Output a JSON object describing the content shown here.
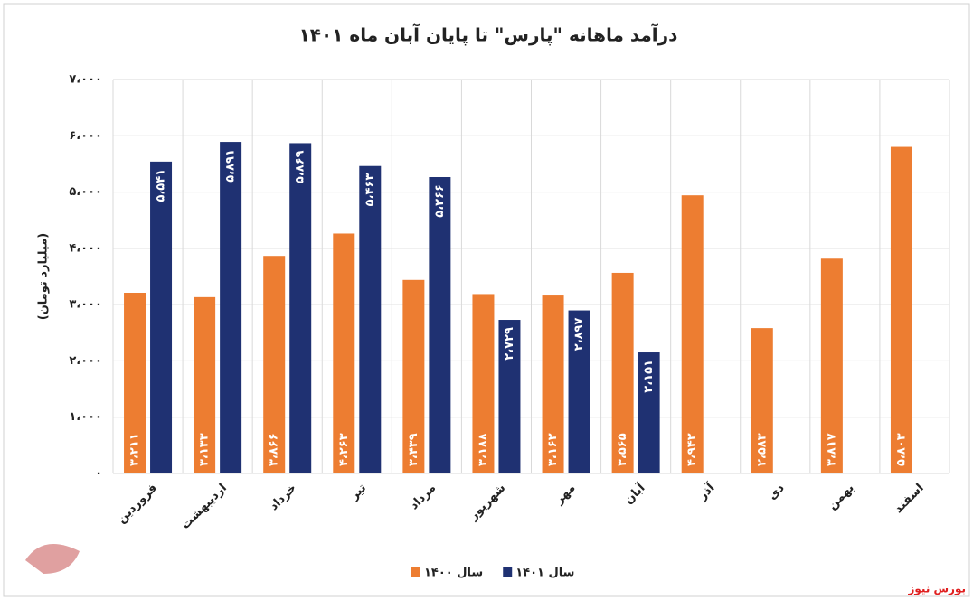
{
  "chart_data": {
    "type": "bar",
    "title": "درآمد ماهانه \"پارس\" تا پایان آبان ماه ۱۴۰۱",
    "y_label": "(میلیارد تومان)",
    "categories": [
      "فروردین",
      "اردیبهشت",
      "خرداد",
      "تیر",
      "مرداد",
      "شهریور",
      "مهر",
      "آبان",
      "آذر",
      "دی",
      "بهمن",
      "اسفند"
    ],
    "series": [
      {
        "name": "سال ۱۴۰۰",
        "color": "#ed7d31",
        "values": [
          3211,
          3133,
          3866,
          4263,
          3439,
          3188,
          3162,
          3565,
          4942,
          2583,
          3817,
          5803
        ],
        "value_labels": [
          "۳،۲۱۱",
          "۳،۱۳۳",
          "۳،۸۶۶",
          "۴،۲۶۳",
          "۳،۴۳۹",
          "۳،۱۸۸",
          "۳،۱۶۲",
          "۳،۵۶۵",
          "۴،۹۴۲",
          "۲،۵۸۳",
          "۳،۸۱۷",
          "۵،۸۰۳"
        ]
      },
      {
        "name": "سال ۱۴۰۱",
        "color": "#1f3172",
        "values": [
          5541,
          5891,
          5869,
          5463,
          5266,
          2729,
          2897,
          2151,
          null,
          null,
          null,
          null
        ],
        "value_labels": [
          "۵،۵۴۱",
          "۵،۸۹۱",
          "۵،۸۶۹",
          "۵،۴۶۳",
          "۵،۲۶۶",
          "۲،۷۲۹",
          "۲،۸۹۷",
          "۲،۱۵۱",
          null,
          null,
          null,
          null
        ]
      }
    ],
    "ylim": [
      0,
      7000
    ],
    "yticks": [
      {
        "value": 0,
        "label": "۰"
      },
      {
        "value": 1000,
        "label": "۱،۰۰۰"
      },
      {
        "value": 2000,
        "label": "۲،۰۰۰"
      },
      {
        "value": 3000,
        "label": "۳،۰۰۰"
      },
      {
        "value": 4000,
        "label": "۴،۰۰۰"
      },
      {
        "value": 5000,
        "label": "۵،۰۰۰"
      },
      {
        "value": 6000,
        "label": "۶،۰۰۰"
      },
      {
        "value": 7000,
        "label": "۷،۰۰۰"
      }
    ],
    "grid": true,
    "legend": "bottom",
    "source": "بورس نیوز"
  }
}
